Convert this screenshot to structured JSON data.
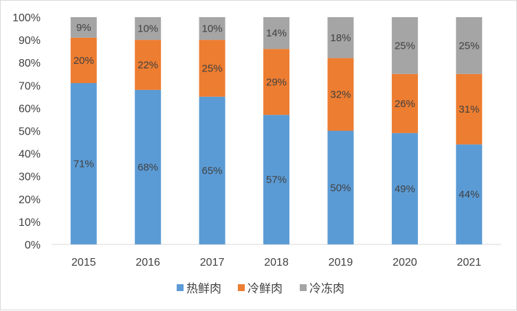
{
  "chart_data": {
    "type": "bar",
    "stacked": true,
    "categories": [
      "2015",
      "2016",
      "2017",
      "2018",
      "2019",
      "2020",
      "2021"
    ],
    "series": [
      {
        "name": "热鲜肉",
        "color": "#5b9bd5",
        "values": [
          71,
          68,
          65,
          57,
          50,
          49,
          44
        ],
        "labels": [
          "71%",
          "68%",
          "65%",
          "57%",
          "50%",
          "49%",
          "44%"
        ]
      },
      {
        "name": "冷鲜肉",
        "color": "#ed7d31",
        "values": [
          20,
          22,
          25,
          29,
          32,
          26,
          31
        ],
        "labels": [
          "20%",
          "22%",
          "25%",
          "29%",
          "32%",
          "26%",
          "31%"
        ]
      },
      {
        "name": "冷冻肉",
        "color": "#a5a5a5",
        "values": [
          9,
          10,
          10,
          14,
          18,
          25,
          25
        ],
        "labels": [
          "9%",
          "10%",
          "10%",
          "14%",
          "18%",
          "25%",
          "25%"
        ]
      }
    ],
    "ylim": [
      0,
      100
    ],
    "yticks": [
      "0%",
      "10%",
      "20%",
      "30%",
      "40%",
      "50%",
      "60%",
      "70%",
      "80%",
      "90%",
      "100%"
    ],
    "grid": false,
    "legend_position": "bottom"
  }
}
